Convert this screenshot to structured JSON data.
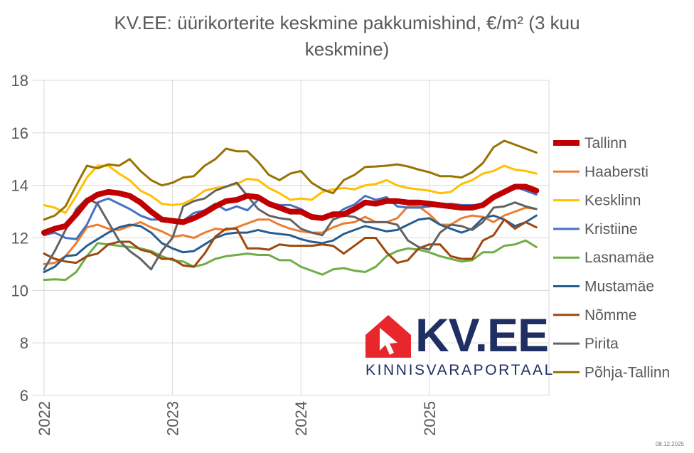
{
  "chart_data": {
    "type": "line",
    "title": "KV.EE: üürikorterite keskmine pakkumishind, €/m² (3 kuu keskmine)",
    "title_lines": [
      "KV.EE: üürikorterite keskmine pakkumishind, €/m² (3 kuu",
      "keskmine)"
    ],
    "xlabel": "",
    "ylabel": "",
    "ylim": [
      6,
      18
    ],
    "yticks": [
      "6",
      "8",
      "10",
      "12",
      "14",
      "16",
      "18"
    ],
    "xticks": [
      "2022",
      "2023",
      "2024",
      "2025"
    ],
    "x_start": "2022-01",
    "x_end": "2025-11",
    "x_frequency": "monthly",
    "grid": true,
    "legend_position": "right",
    "series": [
      {
        "name": "Tallinn",
        "color": "#C00000",
        "emphasis": true,
        "values": [
          12.2,
          12.35,
          12.45,
          12.9,
          13.4,
          13.65,
          13.75,
          13.7,
          13.6,
          13.35,
          13.0,
          12.7,
          12.65,
          12.6,
          12.75,
          12.95,
          13.2,
          13.4,
          13.45,
          13.6,
          13.55,
          13.3,
          13.15,
          13.0,
          13.0,
          12.8,
          12.75,
          12.9,
          12.9,
          13.1,
          13.35,
          13.3,
          13.4,
          13.4,
          13.35,
          13.35,
          13.3,
          13.25,
          13.2,
          13.15,
          13.15,
          13.25,
          13.55,
          13.75,
          13.95,
          13.95,
          13.8
        ]
      },
      {
        "name": "Haabersti",
        "color": "#ED7D31",
        "values": [
          11.0,
          11.05,
          11.3,
          11.8,
          12.4,
          12.5,
          12.35,
          12.3,
          12.45,
          12.6,
          12.4,
          12.25,
          12.05,
          12.1,
          12.0,
          12.2,
          12.35,
          12.3,
          12.4,
          12.55,
          12.7,
          12.7,
          12.5,
          12.35,
          12.25,
          12.2,
          12.2,
          12.4,
          12.55,
          12.6,
          12.8,
          12.6,
          12.6,
          12.75,
          13.2,
          13.2,
          12.9,
          12.5,
          12.5,
          12.75,
          12.85,
          12.8,
          12.6,
          12.85,
          13.0,
          13.15,
          13.1
        ]
      },
      {
        "name": "Kesklinn",
        "color": "#FFC000",
        "values": [
          13.25,
          13.15,
          12.95,
          13.6,
          14.3,
          14.75,
          14.75,
          14.45,
          14.2,
          13.8,
          13.6,
          13.3,
          13.25,
          13.3,
          13.5,
          13.8,
          13.9,
          13.95,
          14.05,
          14.25,
          14.2,
          13.9,
          13.7,
          13.45,
          13.5,
          13.45,
          13.75,
          13.85,
          13.9,
          13.85,
          14.0,
          14.05,
          14.2,
          14.0,
          13.9,
          13.85,
          13.8,
          13.7,
          13.75,
          14.05,
          14.2,
          14.45,
          14.55,
          14.75,
          14.6,
          14.55,
          14.45
        ]
      },
      {
        "name": "Kristiine",
        "color": "#4472C4",
        "values": [
          12.1,
          12.2,
          12.0,
          11.95,
          12.5,
          13.35,
          13.5,
          13.3,
          13.1,
          12.85,
          12.7,
          12.7,
          12.65,
          12.65,
          12.95,
          13.05,
          13.3,
          13.05,
          13.2,
          13.05,
          13.45,
          13.35,
          13.25,
          13.25,
          13.1,
          12.85,
          12.75,
          12.8,
          13.1,
          13.27,
          13.6,
          13.45,
          13.55,
          13.2,
          13.15,
          13.15,
          13.2,
          13.25,
          13.3,
          13.25,
          13.25,
          13.25,
          13.5,
          13.7,
          13.95,
          13.8,
          13.65
        ]
      },
      {
        "name": "Lasnamäe",
        "color": "#70AD47",
        "values": [
          10.4,
          10.42,
          10.4,
          10.7,
          11.3,
          11.8,
          11.75,
          11.7,
          11.65,
          11.6,
          11.5,
          11.3,
          11.15,
          11.1,
          10.9,
          11.0,
          11.2,
          11.3,
          11.35,
          11.4,
          11.35,
          11.35,
          11.15,
          11.15,
          10.9,
          10.75,
          10.6,
          10.8,
          10.85,
          10.75,
          10.7,
          10.9,
          11.3,
          11.5,
          11.6,
          11.55,
          11.45,
          11.3,
          11.2,
          11.1,
          11.15,
          11.45,
          11.45,
          11.7,
          11.75,
          11.9,
          11.65
        ]
      },
      {
        "name": "Mustamäe",
        "color": "#255E91",
        "values": [
          10.7,
          10.9,
          11.3,
          11.35,
          11.7,
          11.95,
          12.2,
          12.4,
          12.5,
          12.45,
          12.2,
          11.8,
          11.6,
          11.45,
          11.5,
          11.75,
          12.0,
          12.15,
          12.2,
          12.2,
          12.3,
          12.2,
          12.15,
          12.1,
          11.95,
          11.85,
          11.8,
          11.9,
          12.15,
          12.3,
          12.45,
          12.35,
          12.25,
          12.3,
          12.5,
          12.7,
          12.75,
          12.5,
          12.35,
          12.2,
          12.35,
          12.75,
          12.85,
          12.7,
          12.45,
          12.6,
          12.85
        ]
      },
      {
        "name": "Nõmme",
        "color": "#9E480E",
        "values": [
          11.4,
          11.2,
          11.1,
          11.05,
          11.3,
          11.4,
          11.75,
          11.85,
          11.85,
          11.55,
          11.45,
          11.2,
          11.2,
          10.95,
          10.9,
          11.4,
          12.05,
          12.35,
          12.35,
          11.6,
          11.6,
          11.55,
          11.75,
          11.7,
          11.7,
          11.7,
          11.75,
          11.7,
          11.4,
          11.7,
          12.0,
          12.0,
          11.45,
          11.05,
          11.15,
          11.6,
          11.75,
          11.75,
          11.3,
          11.2,
          11.2,
          11.9,
          12.1,
          12.7,
          12.35,
          12.6,
          12.4
        ]
      },
      {
        "name": "Pirita",
        "color": "#636363",
        "values": [
          10.8,
          11.5,
          12.3,
          13.1,
          13.5,
          13.3,
          12.6,
          11.9,
          11.5,
          11.2,
          10.8,
          11.5,
          12.0,
          13.2,
          13.4,
          13.5,
          13.8,
          13.95,
          14.1,
          13.6,
          13.1,
          12.85,
          12.75,
          12.7,
          12.35,
          12.2,
          12.1,
          12.7,
          12.85,
          12.8,
          12.6,
          12.6,
          12.6,
          12.5,
          11.9,
          11.65,
          11.55,
          12.2,
          12.5,
          12.45,
          12.3,
          12.6,
          13.15,
          13.2,
          13.35,
          13.2,
          13.1
        ]
      },
      {
        "name": "Põhja-Tallinn",
        "color": "#997300",
        "values": [
          12.7,
          12.85,
          13.2,
          14.0,
          14.75,
          14.65,
          14.8,
          14.75,
          15.0,
          14.55,
          14.2,
          14.0,
          14.1,
          14.3,
          14.35,
          14.75,
          15.0,
          15.4,
          15.3,
          15.3,
          14.9,
          14.4,
          14.2,
          14.45,
          14.55,
          14.1,
          13.85,
          13.7,
          14.2,
          14.4,
          14.7,
          14.72,
          14.75,
          14.8,
          14.72,
          14.6,
          14.5,
          14.35,
          14.35,
          14.3,
          14.5,
          14.85,
          15.45,
          15.7,
          15.55,
          15.4,
          15.25
        ]
      }
    ]
  },
  "logo": {
    "text": "KV.EE",
    "subtitle": "KINNISVARAPORTAAL",
    "icon": "house-cursor-icon",
    "icon_color": "#E8262B",
    "text_color": "#1F2F63"
  },
  "date_stamp": "08.12.2025"
}
